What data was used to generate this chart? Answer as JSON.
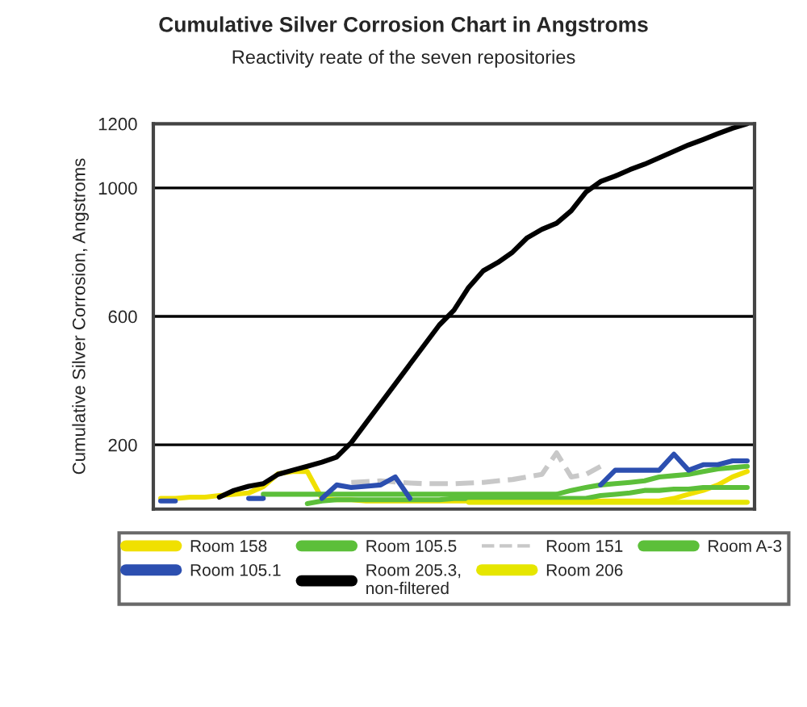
{
  "chart_data": {
    "type": "line",
    "title": "Cumulative Silver Corrosion Chart in Angstroms",
    "subtitle": "Reactivity reate of the seven repositories",
    "ylabel": "Cumulative Silver Corrosion, Angstroms",
    "categories": [
      null,
      null,
      null,
      null,
      null,
      null,
      null,
      null,
      null,
      null,
      null,
      null,
      null,
      null,
      null,
      null,
      null,
      null,
      null,
      null,
      null,
      null,
      null,
      null,
      null,
      null,
      null,
      null,
      null,
      null,
      null,
      null,
      null,
      null,
      null,
      null,
      null,
      null,
      null,
      null,
      null
    ],
    "series": [
      {
        "name": "Room 158",
        "color": "#f0e000",
        "values": [
          33,
          33,
          37,
          37,
          42,
          46,
          50,
          70,
          110,
          117,
          117,
          33,
          29,
          29,
          25,
          25,
          25,
          25,
          25,
          25,
          25,
          25,
          25,
          25,
          25,
          25,
          25,
          25,
          25,
          25,
          25,
          25,
          25,
          25,
          25,
          33,
          46,
          58,
          75,
          100,
          117
        ]
      },
      {
        "name": "Room 105.5",
        "color": "#5cbf3a",
        "values": [
          null,
          null,
          null,
          null,
          null,
          null,
          null,
          null,
          null,
          null,
          17,
          25,
          29,
          29,
          29,
          29,
          29,
          29,
          29,
          29,
          33,
          33,
          33,
          33,
          33,
          33,
          33,
          33,
          33,
          33,
          42,
          46,
          50,
          58,
          58,
          62,
          62,
          67,
          67,
          67,
          67
        ]
      },
      {
        "name": "Room 151",
        "color": "#c8c8c8",
        "line_style": "dashed",
        "values": [
          null,
          null,
          null,
          null,
          null,
          null,
          null,
          null,
          null,
          null,
          null,
          null,
          null,
          83,
          85,
          88,
          84,
          81,
          79,
          79,
          79,
          81,
          83,
          88,
          92,
          100,
          108,
          175,
          100,
          108,
          133,
          null,
          null,
          null,
          null,
          null,
          null,
          null,
          null,
          null,
          null
        ]
      },
      {
        "name": "Room A-3",
        "color": "#5cbf3a",
        "values": [
          null,
          null,
          null,
          null,
          null,
          null,
          null,
          46,
          46,
          46,
          46,
          46,
          46,
          46,
          46,
          46,
          46,
          46,
          46,
          46,
          46,
          46,
          46,
          46,
          46,
          46,
          46,
          46,
          58,
          67,
          75,
          79,
          83,
          88,
          100,
          104,
          108,
          117,
          125,
          129,
          133
        ]
      },
      {
        "name": "Room 105.1",
        "color": "#2c4fb0",
        "values": [
          25,
          25,
          null,
          null,
          null,
          null,
          33,
          33,
          null,
          null,
          null,
          33,
          75,
          67,
          71,
          75,
          100,
          33,
          null,
          null,
          null,
          null,
          null,
          null,
          null,
          null,
          null,
          null,
          null,
          null,
          75,
          121,
          121,
          121,
          121,
          171,
          121,
          138,
          138,
          150,
          150
        ]
      },
      {
        "name": "Room 205.3, non-filtered",
        "color": "#000000",
        "values": [
          null,
          null,
          null,
          null,
          37,
          58,
          71,
          79,
          108,
          121,
          133,
          146,
          162,
          207,
          268,
          329,
          390,
          451,
          512,
          573,
          619,
          690,
          742,
          768,
          800,
          845,
          871,
          890,
          929,
          987,
          1020,
          1037,
          1057,
          1074,
          1094,
          1114,
          1134,
          1151,
          1169,
          1186,
          1200
        ]
      },
      {
        "name": "Room 206",
        "color": "#e6e600",
        "values": [
          null,
          null,
          null,
          null,
          null,
          null,
          null,
          null,
          null,
          null,
          null,
          null,
          null,
          null,
          null,
          null,
          null,
          null,
          null,
          null,
          null,
          21,
          21,
          21,
          21,
          21,
          21,
          21,
          21,
          21,
          21,
          21,
          21,
          21,
          21,
          21,
          21,
          21,
          21,
          21,
          21
        ]
      }
    ],
    "ylim": [
      0,
      1200
    ],
    "yticks": [
      200,
      600,
      1000,
      1200
    ],
    "grid": "y",
    "legend": "bottom",
    "tick_labels": "y"
  }
}
